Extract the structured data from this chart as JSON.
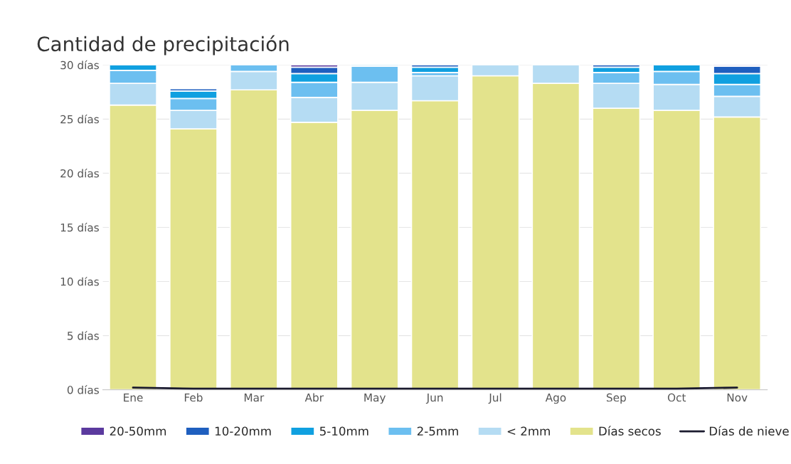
{
  "chart_data": {
    "type": "bar",
    "title": "Cantidad de precipitación",
    "stacked": true,
    "categories": [
      "Ene",
      "Feb",
      "Mar",
      "Abr",
      "May",
      "Jun",
      "Jul",
      "Ago",
      "Sep",
      "Oct",
      "Nov"
    ],
    "series": [
      {
        "name": "Días secos",
        "color": "#e3e38c",
        "values": [
          26.3,
          24.1,
          27.7,
          24.7,
          25.8,
          26.7,
          29.0,
          28.3,
          26.0,
          25.8,
          25.2
        ]
      },
      {
        "name": "< 2mm",
        "color": "#b5dcf3",
        "values": [
          2.0,
          1.7,
          1.7,
          2.3,
          2.6,
          2.3,
          1.0,
          1.7,
          2.3,
          2.4,
          1.9
        ]
      },
      {
        "name": "2-5mm",
        "color": "#6cbff0",
        "values": [
          1.2,
          1.1,
          0.6,
          1.4,
          1.5,
          0.3,
          null,
          null,
          1.0,
          1.2,
          1.1
        ]
      },
      {
        "name": "5-10mm",
        "color": "#10a0e0",
        "values": [
          0.5,
          0.7,
          null,
          0.8,
          0.1,
          0.5,
          null,
          null,
          0.5,
          0.6,
          1.0
        ]
      },
      {
        "name": "10-20mm",
        "color": "#1f5fbf",
        "values": [
          null,
          0.2,
          null,
          0.6,
          null,
          0.2,
          null,
          null,
          0.2,
          null,
          0.7
        ]
      },
      {
        "name": "20-50mm",
        "color": "#5b3a9e",
        "values": [
          null,
          null,
          null,
          0.2,
          null,
          null,
          null,
          null,
          null,
          null,
          0.1
        ]
      },
      {
        "name": "Días de nieve",
        "type": "line",
        "color": "#1a1a2e",
        "values": [
          0.2,
          0.1,
          0.1,
          0.1,
          0.1,
          0.1,
          0.1,
          0.1,
          0.1,
          0.1,
          0.2
        ]
      }
    ],
    "ylim": [
      0,
      30
    ],
    "yticks": [
      {
        "value": 0,
        "label": "0 días"
      },
      {
        "value": 5,
        "label": "5 días"
      },
      {
        "value": 10,
        "label": "10 días"
      },
      {
        "value": 15,
        "label": "15 días"
      },
      {
        "value": 20,
        "label": "20 días"
      },
      {
        "value": 25,
        "label": "25 días"
      },
      {
        "value": 30,
        "label": "30 días"
      }
    ],
    "grid": "y",
    "legend": "bottom"
  }
}
